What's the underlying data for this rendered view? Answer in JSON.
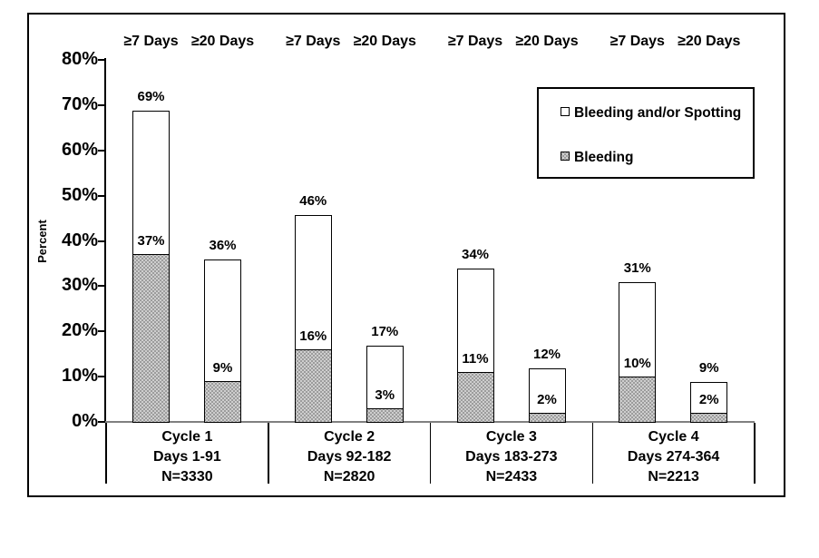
{
  "figure": {
    "background": "#ffffff",
    "frame_border_color": "#000000",
    "baseline_color": "#808080",
    "pattern_gray": "#9c9c9c",
    "legend": {
      "items": [
        {
          "label": "Bleeding and/or Spotting",
          "swatch": "white-square-icon",
          "fill": "#ffffff"
        },
        {
          "label": "Bleeding",
          "swatch": "dotted-gray-square-icon",
          "fill": "#9c9c9c"
        }
      ]
    }
  },
  "chart_data": {
    "type": "bar",
    "subtype": "grouped stacked columns: gray dotted 'Bleeding' subset drawn at base of white 'Bleeding and/or Spotting' total bar",
    "title": "",
    "xlabel": "",
    "ylabel": "Percent",
    "ylim": [
      0,
      80
    ],
    "grid": false,
    "legend_position": "inside top-right",
    "legend": [
      "Bleeding and/or Spotting",
      "Bleeding"
    ],
    "y_ticks": [
      {
        "value": 80,
        "label": "80%"
      },
      {
        "value": 70,
        "label": "70%"
      },
      {
        "value": 60,
        "label": "60%"
      },
      {
        "value": 50,
        "label": "50%"
      },
      {
        "value": 40,
        "label": "40%"
      },
      {
        "value": 30,
        "label": "30%"
      },
      {
        "value": 20,
        "label": "20%"
      },
      {
        "value": 10,
        "label": "10%"
      },
      {
        "value": 0,
        "label": "0%"
      }
    ],
    "groups": [
      {
        "cycle": "Cycle 1",
        "days": "Days 1-91",
        "n": "N=3330",
        "bars": [
          {
            "duration": "≥7 Days",
            "total_pct": 69,
            "total_label": "69%",
            "bleeding_pct": 37,
            "bleeding_label": "37%"
          },
          {
            "duration": "≥20 Days",
            "total_pct": 36,
            "total_label": "36%",
            "bleeding_pct": 9,
            "bleeding_label": "9%"
          }
        ]
      },
      {
        "cycle": "Cycle 2",
        "days": "Days 92-182",
        "n": "N=2820",
        "bars": [
          {
            "duration": "≥7 Days",
            "total_pct": 46,
            "total_label": "46%",
            "bleeding_pct": 16,
            "bleeding_label": "16%"
          },
          {
            "duration": "≥20 Days",
            "total_pct": 17,
            "total_label": "17%",
            "bleeding_pct": 3,
            "bleeding_label": "3%"
          }
        ]
      },
      {
        "cycle": "Cycle 3",
        "days": "Days 183-273",
        "n": "N=2433",
        "bars": [
          {
            "duration": "≥7 Days",
            "total_pct": 34,
            "total_label": "34%",
            "bleeding_pct": 11,
            "bleeding_label": "11%"
          },
          {
            "duration": "≥20 Days",
            "total_pct": 12,
            "total_label": "12%",
            "bleeding_pct": 2,
            "bleeding_label": "2%"
          }
        ]
      },
      {
        "cycle": "Cycle 4",
        "days": "Days 274-364",
        "n": "N=2213",
        "bars": [
          {
            "duration": "≥7 Days",
            "total_pct": 31,
            "total_label": "31%",
            "bleeding_pct": 10,
            "bleeding_label": "10%"
          },
          {
            "duration": "≥20 Days",
            "total_pct": 9,
            "total_label": "9%",
            "bleeding_pct": 2,
            "bleeding_label": "2%"
          }
        ]
      }
    ]
  }
}
